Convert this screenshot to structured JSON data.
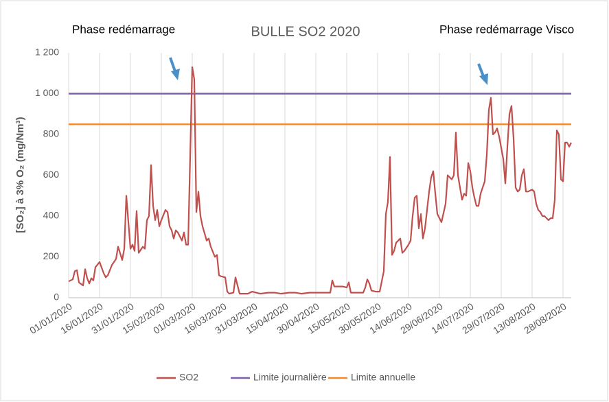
{
  "chart_data": {
    "type": "line",
    "title": "BULLE  SO2  2020",
    "y_label": "[SO₂] à 3% O₂ (mg/Nm³)",
    "annotations": [
      "Phase redémarrage",
      "Phase redémarrage Visco"
    ],
    "xlim": [
      "01/01/2020",
      "01/09/2020"
    ],
    "xticks": [
      "01/01/2020",
      "16/01/2020",
      "31/01/2020",
      "15/02/2020",
      "01/03/2020",
      "16/03/2020",
      "31/03/2020",
      "15/04/2020",
      "30/04/2020",
      "15/05/2020",
      "30/05/2020",
      "14/06/2020",
      "29/06/2020",
      "14/07/2020",
      "29/07/2020",
      "13/08/2020",
      "28/08/2020"
    ],
    "ylim": [
      0,
      1200
    ],
    "yticks": [
      0,
      200,
      400,
      600,
      800,
      {
        "value": 1000,
        "label": "1 000"
      },
      {
        "value": 1200,
        "label": "1 200"
      }
    ],
    "grid": "x",
    "legend": "bottom",
    "series": [
      {
        "name": "SO2",
        "color": "#c0504d",
        "x": [
          "01/01/2020",
          "03/01/2020",
          "04/01/2020",
          "05/01/2020",
          "06/01/2020",
          "08/01/2020",
          "09/01/2020",
          "10/01/2020",
          "11/01/2020",
          "12/01/2020",
          "13/01/2020",
          "14/01/2020",
          "16/01/2020",
          "18/01/2020",
          "19/01/2020",
          "20/01/2020",
          "22/01/2020",
          "24/01/2020",
          "25/01/2020",
          "27/01/2020",
          "28/01/2020",
          "29/01/2020",
          "31/01/2020",
          "01/02/2020",
          "02/02/2020",
          "03/02/2020",
          "04/02/2020",
          "06/02/2020",
          "07/02/2020",
          "08/02/2020",
          "09/02/2020",
          "10/02/2020",
          "11/02/2020",
          "12/02/2020",
          "13/02/2020",
          "14/02/2020",
          "15/02/2020",
          "17/02/2020",
          "18/02/2020",
          "19/02/2020",
          "20/02/2020",
          "21/02/2020",
          "22/02/2020",
          "23/02/2020",
          "25/02/2020",
          "26/02/2020",
          "27/02/2020",
          "28/02/2020",
          "01/03/2020",
          "02/03/2020",
          "03/03/2020",
          "04/03/2020",
          "05/03/2020",
          "06/03/2020",
          "08/03/2020",
          "09/03/2020",
          "10/03/2020",
          "12/03/2020",
          "13/03/2020",
          "14/03/2020",
          "15/03/2020",
          "17/03/2020",
          "18/03/2020",
          "19/03/2020",
          "21/03/2020",
          "22/03/2020",
          "24/03/2020",
          "28/03/2020",
          "30/03/2020",
          "01/04/2020",
          "03/04/2020",
          "07/04/2020",
          "10/04/2020",
          "13/04/2020",
          "17/04/2020",
          "20/04/2020",
          "23/04/2020",
          "27/04/2020",
          "30/04/2020",
          "03/05/2020",
          "07/05/2020",
          "08/05/2020",
          "09/05/2020",
          "12/05/2020",
          "13/05/2020",
          "15/05/2020",
          "16/05/2020",
          "17/05/2020",
          "20/05/2020",
          "23/05/2020",
          "24/05/2020",
          "25/05/2020",
          "26/05/2020",
          "27/05/2020",
          "29/05/2020",
          "31/05/2020",
          "02/06/2020",
          "03/06/2020",
          "04/06/2020",
          "05/06/2020",
          "06/06/2020",
          "07/06/2020",
          "08/06/2020",
          "10/06/2020",
          "11/06/2020",
          "12/06/2020",
          "14/06/2020",
          "15/06/2020",
          "16/06/2020",
          "17/06/2020",
          "18/06/2020",
          "19/06/2020",
          "20/06/2020",
          "21/06/2020",
          "22/06/2020",
          "24/06/2020",
          "25/06/2020",
          "26/06/2020",
          "27/06/2020",
          "28/06/2020",
          "29/06/2020",
          "30/06/2020",
          "02/07/2020",
          "03/07/2020",
          "04/07/2020",
          "05/07/2020",
          "06/07/2020",
          "07/07/2020",
          "08/07/2020",
          "09/07/2020",
          "10/07/2020",
          "11/07/2020",
          "12/07/2020",
          "13/07/2020",
          "14/07/2020",
          "15/07/2020",
          "16/07/2020",
          "17/07/2020",
          "18/07/2020",
          "19/07/2020",
          "21/07/2020",
          "22/07/2020",
          "23/07/2020",
          "24/07/2020",
          "25/07/2020",
          "26/07/2020",
          "27/07/2020",
          "28/07/2020",
          "30/07/2020",
          "31/07/2020",
          "01/08/2020",
          "02/08/2020",
          "03/08/2020",
          "04/08/2020",
          "05/08/2020",
          "06/08/2020",
          "07/08/2020",
          "08/08/2020",
          "09/08/2020",
          "10/08/2020",
          "11/08/2020",
          "13/08/2020",
          "14/08/2020",
          "15/08/2020",
          "16/08/2020",
          "17/08/2020",
          "18/08/2020",
          "19/08/2020",
          "20/08/2020",
          "21/08/2020",
          "22/08/2020",
          "23/08/2020",
          "24/08/2020",
          "25/08/2020",
          "26/08/2020",
          "27/08/2020",
          "28/08/2020",
          "29/08/2020",
          "30/08/2020",
          "31/08/2020",
          "01/09/2020"
        ],
        "values": [
          80,
          90,
          130,
          135,
          75,
          60,
          140,
          95,
          70,
          95,
          85,
          150,
          175,
          120,
          100,
          110,
          160,
          190,
          250,
          185,
          240,
          500,
          240,
          260,
          230,
          425,
          220,
          250,
          240,
          380,
          400,
          650,
          450,
          380,
          430,
          350,
          380,
          430,
          420,
          350,
          330,
          290,
          330,
          320,
          280,
          320,
          260,
          260,
          1130,
          1070,
          420,
          520,
          400,
          350,
          280,
          290,
          250,
          200,
          210,
          110,
          105,
          100,
          30,
          20,
          25,
          100,
          20,
          20,
          30,
          25,
          20,
          25,
          25,
          20,
          25,
          25,
          20,
          25,
          25,
          25,
          25,
          85,
          55,
          55,
          55,
          50,
          75,
          25,
          25,
          25,
          50,
          90,
          70,
          35,
          30,
          30,
          130,
          410,
          470,
          690,
          210,
          230,
          270,
          290,
          220,
          230,
          260,
          280,
          400,
          490,
          500,
          340,
          410,
          290,
          340,
          520,
          590,
          620,
          510,
          410,
          390,
          370,
          460,
          600,
          590,
          580,
          600,
          810,
          600,
          540,
          480,
          510,
          500,
          660,
          620,
          540,
          490,
          450,
          450,
          510,
          570,
          700,
          920,
          980,
          800,
          810,
          830,
          790,
          680,
          560,
          740,
          900,
          940,
          780,
          540,
          520,
          530,
          600,
          630,
          520,
          520,
          530,
          520,
          460,
          430,
          420,
          400,
          400,
          390,
          380,
          390,
          390,
          480,
          820,
          800,
          580,
          570,
          760,
          760,
          740,
          760
        ]
      },
      {
        "name": "Limite journalière",
        "color": "#7f5fa8",
        "x": [
          "01/01/2020",
          "01/09/2020"
        ],
        "values": [
          1000,
          1000
        ]
      },
      {
        "name": "Limite annuelle",
        "color": "#f08a2a",
        "x": [
          "01/01/2020",
          "01/09/2020"
        ],
        "values": [
          850,
          850
        ]
      }
    ]
  }
}
